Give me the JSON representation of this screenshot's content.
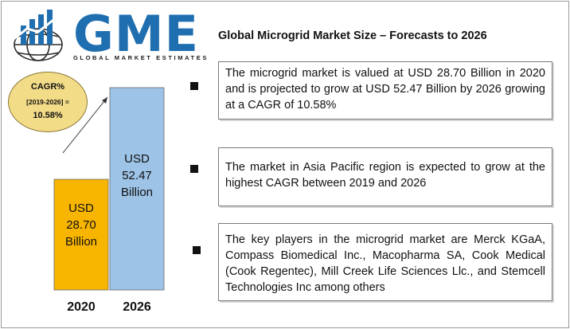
{
  "logo": {
    "brand": "GME",
    "subtitle": "GLOBAL MARKET ESTIMATES"
  },
  "title": "Global Microgrid Market Size – Forecasts to 2026",
  "cagr": {
    "line1": "CAGR%",
    "line2": "[2019-2026] =",
    "line3": "10.58%"
  },
  "chart_data": {
    "type": "bar",
    "categories": [
      "2020",
      "2026"
    ],
    "values": [
      28.7,
      52.47
    ],
    "bar_labels": [
      [
        "USD",
        "28.70",
        "Billion"
      ],
      [
        "USD",
        "52.47",
        "Billion"
      ]
    ],
    "colors": [
      "#f7b500",
      "#9dc3e6"
    ],
    "title": "",
    "xlabel": "",
    "ylabel": ""
  },
  "bullets": [
    "The microgrid market is valued at USD 28.70 Billion in 2020 and is projected to grow at USD 52.47 Billion by 2026 growing at a CAGR of 10.58%",
    "The market in Asia Pacific region is expected to grow at the highest CAGR between 2019 and 2026",
    "The key players in the microgrid market are  Merck KGaA, Compass Biomedical Inc., Macopharma SA, Cook Medical (Cook Regentec), Mill Creek Life Sciences Llc., and Stemcell Technologies Inc among others"
  ],
  "colors": {
    "brand_blue": "#1f6fb0",
    "bar_2020": "#f7b500",
    "bar_2026": "#9dc3e6",
    "cagr_bubble": "#f3dc88"
  }
}
